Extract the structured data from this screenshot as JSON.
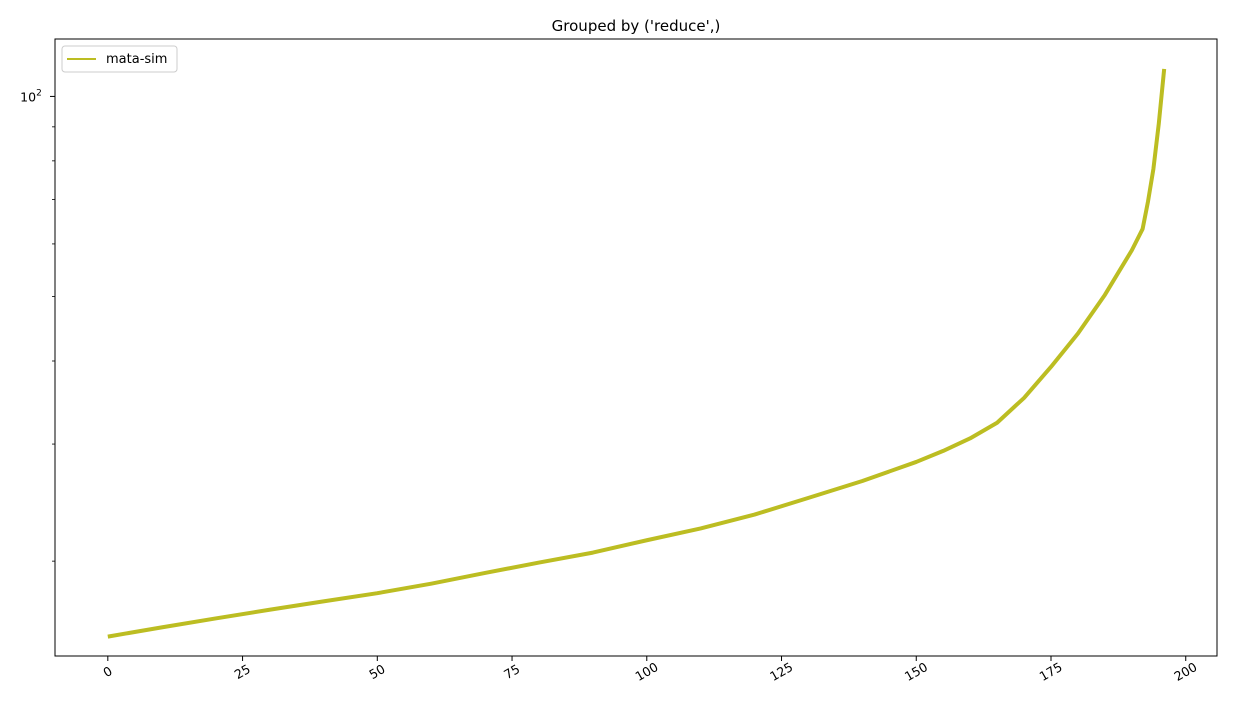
{
  "chart_data": {
    "type": "line",
    "title": "Grouped by ('reduce',)",
    "xlabel": "",
    "ylabel": "",
    "xlim": [
      -9.8,
      205.8
    ],
    "ylim": [
      14.4,
      122
    ],
    "yscale": "log",
    "x_ticks": [
      0,
      25,
      50,
      75,
      100,
      125,
      150,
      175,
      200
    ],
    "x_tick_labels": [
      "0",
      "25",
      "50",
      "75",
      "100",
      "125",
      "150",
      "175",
      "200"
    ],
    "x_tick_rotation": 30,
    "y_ticks": [
      100
    ],
    "y_tick_labels": {
      "base": "10",
      "exp": "2"
    },
    "grid": false,
    "legend": {
      "placement": "top-left",
      "entries": [
        "mata-sim"
      ]
    },
    "series": [
      {
        "name": "mata-sim",
        "color": "#bcbd22",
        "x": [
          0,
          10,
          20,
          30,
          40,
          50,
          60,
          70,
          80,
          90,
          100,
          110,
          120,
          130,
          140,
          150,
          155,
          160,
          165,
          170,
          175,
          180,
          185,
          190,
          192,
          193,
          194,
          195,
          196
        ],
        "y": [
          15.4,
          15.9,
          16.4,
          16.9,
          17.4,
          17.9,
          18.5,
          19.2,
          19.9,
          20.6,
          21.5,
          22.4,
          23.5,
          24.9,
          26.4,
          28.2,
          29.3,
          30.6,
          32.3,
          35.2,
          39.2,
          44.0,
          50.3,
          58.7,
          63.2,
          69.5,
          77.8,
          91.0,
          110.0
        ]
      }
    ]
  }
}
